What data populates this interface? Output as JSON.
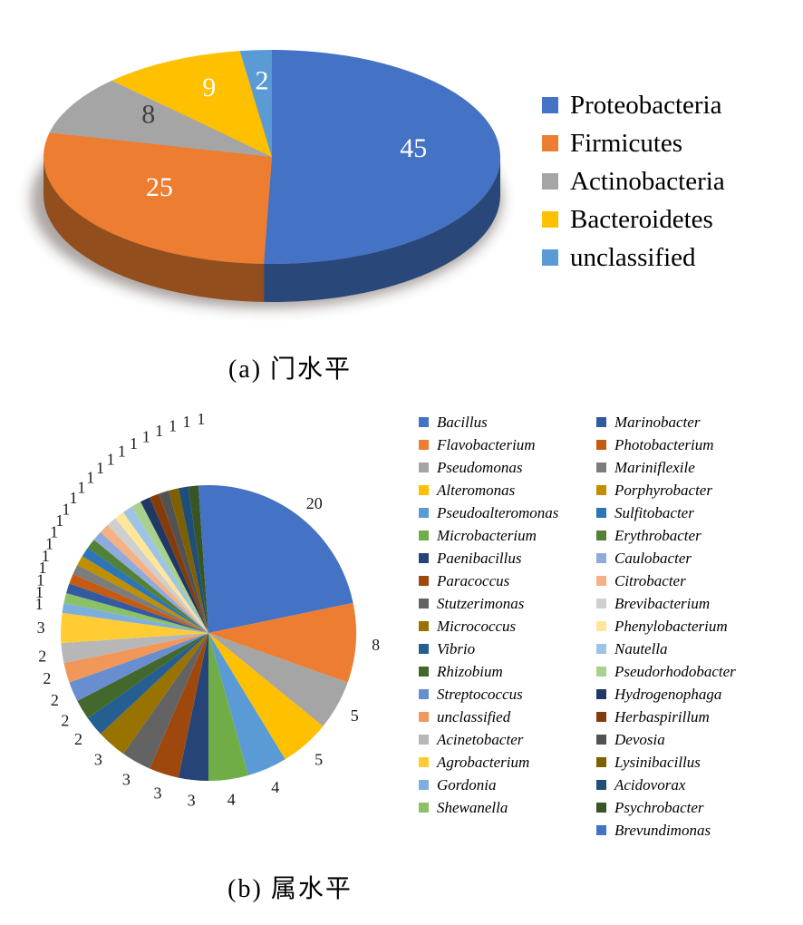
{
  "figure": {
    "background": "#FFFFFF"
  },
  "chart_data": [
    {
      "type": "pie",
      "style": "3d",
      "title": "",
      "caption": "(a) 门水平",
      "legend_position": "right",
      "legend_italic": false,
      "labels": [
        "Proteobacteria",
        "Firmicutes",
        "Actinobacteria",
        "Bacteroidetes",
        "unclassified"
      ],
      "values": [
        45,
        25,
        8,
        9,
        2
      ],
      "colors": [
        "#4472C4",
        "#ED7D31",
        "#A5A5A5",
        "#FFC000",
        "#5B9BD5"
      ],
      "data_label_colors": [
        "#FFFFFF",
        "#FFFFFF",
        "#3F3F3F",
        "#FFFFFF",
        "#FFFFFF"
      ]
    },
    {
      "type": "pie",
      "style": "2d",
      "title": "",
      "caption": "(b) 属水平",
      "legend_position": "right",
      "legend_italic": true,
      "legend_columns": 2,
      "legend_split": 18,
      "labels": [
        "Bacillus",
        "Flavobacterium",
        "Pseudomonas",
        "Alteromonas",
        "Pseudoalteromonas",
        "Microbacterium",
        "Paenibacillus",
        "Paracoccus",
        "Stutzerimonas",
        "Micrococcus",
        "Vibrio",
        "Rhizobium",
        "Streptococcus",
        "unclassified",
        "Acinetobacter",
        "Agrobacterium",
        "Gordonia",
        "Shewanella",
        "Marinobacter",
        "Photobacterium",
        "Mariniflexile",
        "Porphyrobacter",
        "Sulfitobacter",
        "Erythrobacter",
        "Caulobacter",
        "Citrobacter",
        "Brevibacterium",
        "Phenylobacterium",
        "Nautella",
        "Pseudorhodobacter",
        "Hydrogenophaga",
        "Herbaspirillum",
        "Devosia",
        "Lysinibacillus",
        "Acidovorax",
        "Psychrobacter",
        "Brevundimonas"
      ],
      "values": [
        20,
        8,
        5,
        5,
        4,
        4,
        3,
        3,
        3,
        3,
        2,
        2,
        2,
        2,
        2,
        3,
        1,
        1,
        1,
        1,
        1,
        1,
        1,
        1,
        1,
        1,
        1,
        1,
        1,
        1,
        1,
        1,
        1,
        1,
        1,
        1,
        1
      ],
      "colors": [
        "#4472C4",
        "#ED7D31",
        "#A5A5A5",
        "#FFC000",
        "#5B9BD5",
        "#70AD47",
        "#264478",
        "#9E480E",
        "#636363",
        "#997300",
        "#255E91",
        "#43682B",
        "#698ED0",
        "#F1975A",
        "#B7B7B7",
        "#FFCD33",
        "#7CAFDD",
        "#8CC168",
        "#335AA1",
        "#C55A11",
        "#7C7C7C",
        "#BF8F00",
        "#2E75B6",
        "#538135",
        "#8FAADC",
        "#F4B183",
        "#CFCFCF",
        "#FFE699",
        "#9DC3E6",
        "#A9D18E",
        "#203864",
        "#843C0C",
        "#525252",
        "#7F6000",
        "#1F4E79",
        "#375623",
        "#4472C4"
      ],
      "data_label_color": "#1A1A1A"
    }
  ]
}
